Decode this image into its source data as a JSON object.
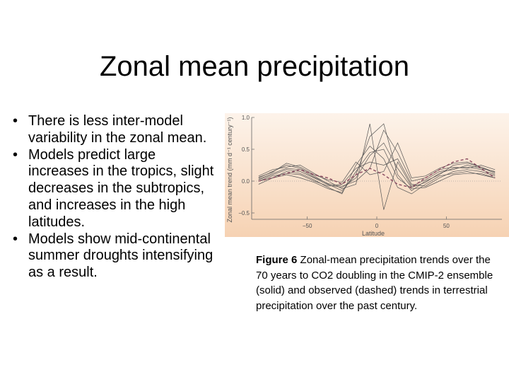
{
  "slide": {
    "title": "Zonal mean precipitation",
    "bullets": [
      "There is less inter-model variability in the zonal mean.",
      "Models predict large increases in the tropics, slight decreases in the subtropics, and increases in the high latitudes.",
      "Models show mid-continental summer droughts intensifying as a result."
    ],
    "bullet_glyph": "•"
  },
  "figure": {
    "caption_label": "Figure 6",
    "caption_text": "Zonal-mean precipitation trends over the 70 years to CO2 doubling in the CMIP-2 ensemble (solid) and observed (dashed) trends in terrestrial precipitation over the past century."
  },
  "chart_data": {
    "type": "line",
    "xlabel": "Latitude",
    "ylabel": "Zonal mean trend (mm d⁻¹ century⁻¹)",
    "xlim": [
      -90,
      90
    ],
    "ylim": [
      -0.6,
      1.0
    ],
    "x_ticks": [
      -50,
      0,
      50
    ],
    "x_tick_labels": [
      "−50",
      "0",
      "50"
    ],
    "y_ticks": [
      1.0,
      0.5,
      0.0,
      -0.5
    ],
    "y_tick_labels": [
      "1.0",
      "0.5",
      "0.0",
      "−0.5"
    ],
    "zero_line": true,
    "background_gradient": [
      "#fdf3ea",
      "#f6d2b3"
    ],
    "x": [
      -85,
      -75,
      -65,
      -55,
      -45,
      -35,
      -25,
      -15,
      -5,
      5,
      15,
      25,
      35,
      45,
      55,
      65,
      75,
      85
    ],
    "series": [
      {
        "style": "solid",
        "values": [
          0.02,
          0.1,
          0.18,
          0.15,
          0.05,
          -0.06,
          -0.1,
          0.05,
          0.4,
          0.6,
          0.2,
          -0.1,
          -0.02,
          0.12,
          0.2,
          0.22,
          0.18,
          0.1
        ]
      },
      {
        "style": "solid",
        "values": [
          0.05,
          0.15,
          0.25,
          0.2,
          0.08,
          -0.05,
          -0.15,
          0.1,
          0.7,
          0.9,
          0.1,
          -0.15,
          0.0,
          0.1,
          0.25,
          0.28,
          0.22,
          0.12
        ]
      },
      {
        "style": "solid",
        "values": [
          0.0,
          0.08,
          0.12,
          0.1,
          0.0,
          -0.08,
          -0.05,
          0.2,
          0.3,
          0.25,
          0.35,
          -0.05,
          -0.08,
          0.05,
          0.15,
          0.18,
          0.15,
          0.08
        ]
      },
      {
        "style": "solid",
        "values": [
          0.08,
          0.18,
          0.22,
          0.25,
          0.12,
          0.0,
          -0.12,
          -0.05,
          0.9,
          -0.45,
          0.3,
          -0.08,
          0.02,
          0.15,
          0.18,
          0.25,
          0.2,
          0.15
        ]
      },
      {
        "style": "solid",
        "values": [
          -0.05,
          0.05,
          0.15,
          0.12,
          0.02,
          -0.1,
          -0.2,
          0.25,
          0.55,
          0.35,
          -0.1,
          -0.2,
          -0.05,
          0.08,
          0.12,
          0.15,
          0.1,
          0.05
        ]
      },
      {
        "style": "solid",
        "values": [
          0.03,
          0.12,
          0.2,
          0.18,
          0.06,
          -0.04,
          -0.08,
          0.0,
          0.2,
          0.8,
          0.45,
          0.0,
          0.05,
          0.18,
          0.22,
          0.2,
          0.25,
          0.18
        ]
      },
      {
        "style": "solid",
        "values": [
          0.0,
          0.05,
          0.1,
          0.05,
          -0.02,
          -0.12,
          -0.18,
          0.15,
          0.45,
          0.5,
          0.05,
          -0.12,
          -0.1,
          0.0,
          0.1,
          0.12,
          0.12,
          0.05
        ]
      },
      {
        "style": "solid",
        "values": [
          0.06,
          0.14,
          0.28,
          0.22,
          0.1,
          0.02,
          -0.02,
          0.3,
          0.1,
          0.15,
          0.6,
          0.05,
          0.08,
          0.2,
          0.28,
          0.3,
          0.22,
          0.14
        ]
      },
      {
        "style": "dashed",
        "values": [
          0.0,
          0.05,
          0.12,
          0.18,
          0.1,
          0.05,
          -0.05,
          0.1,
          0.2,
          0.1,
          -0.05,
          -0.1,
          0.05,
          0.18,
          0.3,
          0.35,
          0.2,
          0.05
        ]
      }
    ]
  }
}
